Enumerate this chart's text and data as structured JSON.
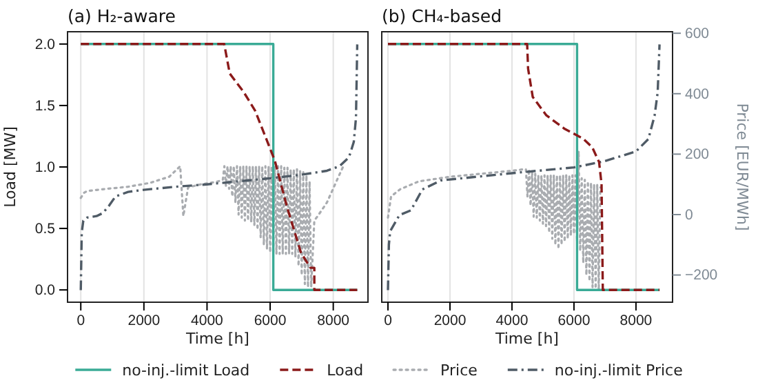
{
  "chart_data": [
    {
      "type": "line",
      "title": "(a) H₂-aware",
      "xlabel": "Time [h]",
      "ylabel": "Load [MW]",
      "xlim": [
        -420,
        9100
      ],
      "xticks": [
        0,
        2000,
        4000,
        6000,
        8000
      ],
      "ylim": [
        -0.1,
        2.1
      ],
      "yticks": [
        {
          "value": 0,
          "label": "0.0"
        },
        0.5,
        {
          "value": 1,
          "label": "1.0"
        },
        1.5,
        {
          "value": 2,
          "label": "2.0"
        }
      ],
      "y2lim": [
        -290,
        605
      ],
      "tick_labels": "xy",
      "grid": "x",
      "legend": "bottom",
      "series": [
        {
          "name": "no-inj.-limit Load",
          "color": "#3aab96",
          "line_style": "solid",
          "x": [
            0,
            6100,
            6100,
            8760
          ],
          "values": [
            2.0,
            2.0,
            0.0,
            0.0
          ]
        },
        {
          "name": "Load",
          "color": "#8b1a1a",
          "line_style": "dashed",
          "x": [
            0,
            4545,
            4720,
            5160,
            5520,
            5860,
            6150,
            6540,
            6980,
            7280,
            7400,
            7400,
            8760
          ],
          "values": [
            2.0,
            2.0,
            1.76,
            1.61,
            1.46,
            1.24,
            1.05,
            0.67,
            0.3,
            0.18,
            0.18,
            0.0,
            0.0
          ]
        },
        {
          "name": "Price",
          "color": "#a9acb0",
          "line_style": "dotted",
          "axis": "y2",
          "x": [
            0,
            100,
            200,
            800,
            1500,
            2200,
            2800,
            3150,
            3250,
            3400,
            3800,
            4300,
            4500,
            4550,
            4600,
            4650,
            4700,
            4750,
            4800,
            4850,
            4900,
            4950,
            5000,
            5050,
            5100,
            5150,
            5200,
            5250,
            5300,
            5350,
            5400,
            5450,
            5500,
            5550,
            5600,
            5650,
            5700,
            5750,
            5800,
            5850,
            5900,
            5950,
            6000,
            6050,
            6100,
            6150,
            6200,
            6250,
            6300,
            6350,
            6400,
            6450,
            6500,
            6550,
            6600,
            6650,
            6700,
            6750,
            6800,
            6850,
            6900,
            6950,
            7000,
            7050,
            7100,
            7150,
            7200,
            7250,
            7300,
            7400,
            7500,
            7800,
            8100,
            8300
          ],
          "values": [
            55,
            72,
            78,
            85,
            92,
            105,
            125,
            160,
            -5,
            90,
            100,
            108,
            115,
            160,
            95,
            160,
            85,
            160,
            60,
            160,
            40,
            160,
            0,
            160,
            -10,
            160,
            -20,
            160,
            -20,
            160,
            -25,
            160,
            -35,
            160,
            -50,
            160,
            -75,
            160,
            -100,
            160,
            -115,
            160,
            -125,
            160,
            -130,
            160,
            -130,
            160,
            -130,
            160,
            -130,
            155,
            -130,
            155,
            -130,
            150,
            -130,
            150,
            -140,
            150,
            -170,
            145,
            -200,
            140,
            -230,
            130,
            -240,
            110,
            -240,
            -20,
            -6,
            40,
            110,
            156
          ]
        },
        {
          "name": "no-inj.-limit Price",
          "color": "#4f5b66",
          "line_style": "dashdot",
          "axis": "y2",
          "x": [
            0,
            30,
            80,
            200,
            500,
            700,
            900,
            1100,
            1500,
            2000,
            3000,
            4000,
            5000,
            6000,
            7000,
            7800,
            8200,
            8500,
            8650,
            8720,
            8760
          ],
          "values": [
            -250,
            -60,
            -20,
            -10,
            -5,
            5,
            30,
            60,
            75,
            82,
            92,
            100,
            110,
            120,
            132,
            145,
            160,
            190,
            240,
            320,
            563
          ]
        }
      ]
    },
    {
      "type": "line",
      "title": "(b) CH₄-based",
      "xlabel": "Time [h]",
      "y2label": "Price [EUR/MWh]",
      "xlim": [
        -200,
        9180
      ],
      "xticks": [
        0,
        2000,
        4000,
        6000,
        8000
      ],
      "ylim": [
        -0.1,
        2.1
      ],
      "y2lim": [
        -290,
        605
      ],
      "y2ticks": [
        -200,
        0,
        200,
        400,
        600
      ],
      "tick_labels": "xy2",
      "grid": "x",
      "series": [
        {
          "color": "#3aab96",
          "line_style": "solid",
          "x": [
            0,
            6100,
            6100,
            8760
          ],
          "values": [
            2.0,
            2.0,
            0.0,
            0.0
          ]
        },
        {
          "color": "#8b1a1a",
          "line_style": "dashed",
          "x": [
            0,
            4490,
            4520,
            4670,
            5110,
            5700,
            6300,
            6590,
            6810,
            6890,
            6930,
            8760
          ],
          "values": [
            2.0,
            2.0,
            1.8,
            1.57,
            1.42,
            1.31,
            1.23,
            1.16,
            1.04,
            0.86,
            0.0,
            0.0
          ]
        },
        {
          "color": "#a9acb0",
          "line_style": "dotted",
          "axis": "y2",
          "x": [
            0,
            100,
            400,
            1000,
            2000,
            3000,
            4000,
            4400,
            4450,
            4500,
            4550,
            4600,
            4650,
            4700,
            4750,
            4800,
            4850,
            4900,
            4950,
            5000,
            5050,
            5100,
            5150,
            5200,
            5250,
            5300,
            5350,
            5400,
            5450,
            5500,
            5550,
            5600,
            5650,
            5700,
            5750,
            5800,
            5850,
            5900,
            5950,
            6000,
            6050,
            6100,
            6150,
            6200,
            6250,
            6300,
            6350,
            6400,
            6450,
            6500,
            6550,
            6600,
            6650,
            6700,
            6750,
            6800,
            6850
          ],
          "values": [
            -10,
            60,
            84,
            110,
            125,
            135,
            145,
            150,
            150,
            60,
            150,
            30,
            140,
            -7,
            135,
            -10,
            130,
            -20,
            130,
            -30,
            130,
            -38,
            130,
            -60,
            130,
            -80,
            130,
            -100,
            130,
            -114,
            130,
            -100,
            130,
            -90,
            130,
            -80,
            130,
            -70,
            130,
            -64,
            130,
            -90,
            210,
            -120,
            120,
            -160,
            115,
            -200,
            110,
            -220,
            105,
            -240,
            100,
            -245,
            100,
            -250,
            90
          ]
        },
        {
          "color": "#4f5b66",
          "line_style": "dashdot",
          "axis": "y2",
          "x": [
            0,
            30,
            71,
            370,
            740,
            1110,
            1710,
            4000,
            6000,
            7000,
            8000,
            8400,
            8600,
            8700,
            8760
          ],
          "values": [
            -250,
            -100,
            -55,
            -2,
            14,
            83,
            113,
            137,
            156,
            177,
            209,
            250,
            327,
            404,
            563
          ]
        }
      ]
    }
  ]
}
